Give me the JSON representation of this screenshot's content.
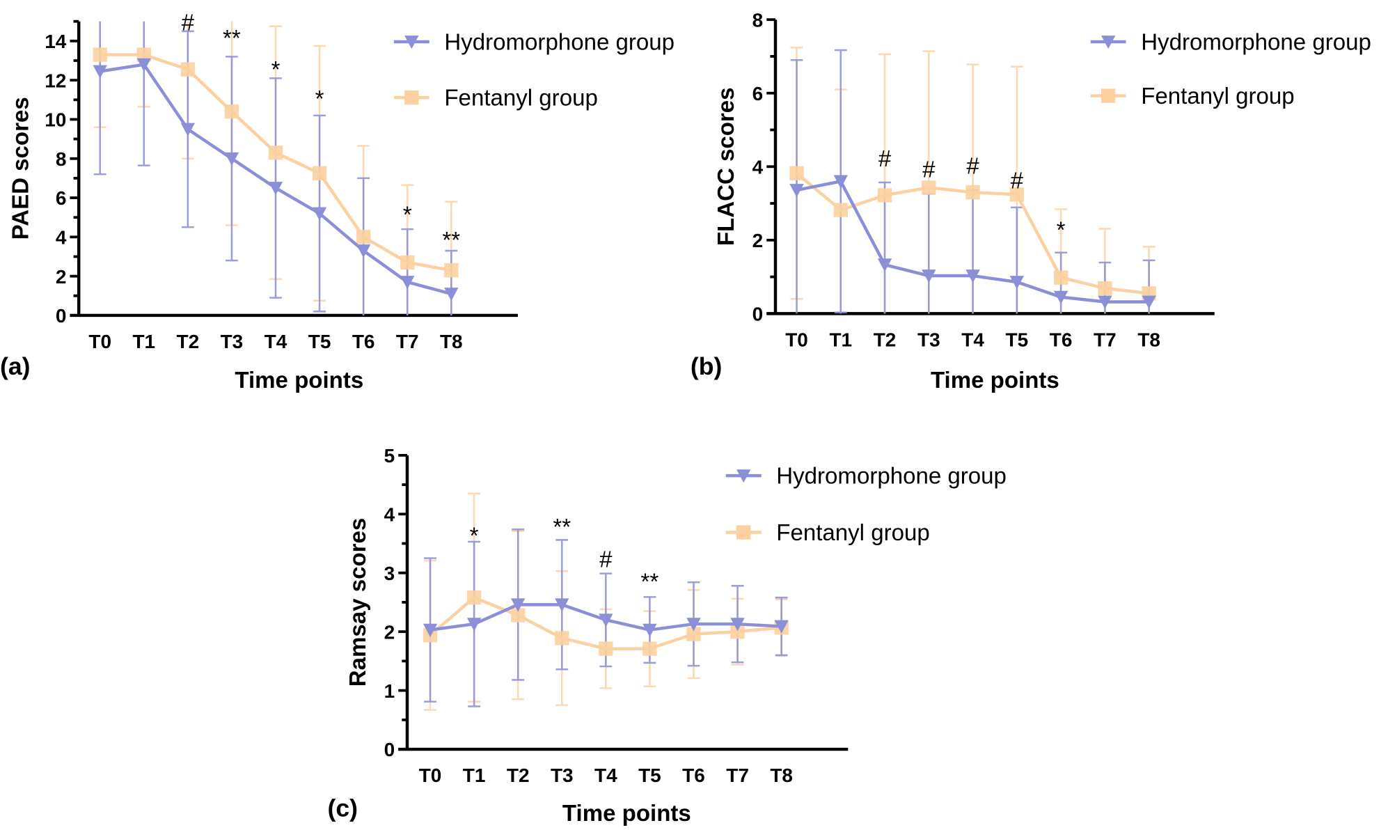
{
  "colors": {
    "hydromorphone": "#8a8fd8",
    "fentanyl": "#fcd0a0",
    "axis": "#000000"
  },
  "chart_data": [
    {
      "type": "line",
      "panel_label": "(a)",
      "xlabel": "Time points",
      "ylabel": "PAED scores",
      "categories": [
        "T0",
        "T1",
        "T2",
        "T3",
        "T4",
        "T5",
        "T6",
        "T7",
        "T8"
      ],
      "ylim": [
        0,
        15
      ],
      "yticks": [
        0,
        2,
        4,
        6,
        8,
        10,
        12,
        14
      ],
      "legend_position": "top-right",
      "series": [
        {
          "name": "Hydromorphone group",
          "key": "hydromorphone",
          "marker": "triangle-down",
          "mean": [
            12.45,
            12.8,
            9.5,
            8.0,
            6.5,
            5.2,
            3.3,
            1.7,
            1.1
          ],
          "sd": [
            5.25,
            5.15,
            5.0,
            5.2,
            5.6,
            5.0,
            3.7,
            2.7,
            2.2
          ]
        },
        {
          "name": "Fentanyl group",
          "key": "fentanyl",
          "marker": "square",
          "mean": [
            13.3,
            13.3,
            12.55,
            10.4,
            8.3,
            7.25,
            4.0,
            2.7,
            2.3
          ],
          "sd": [
            3.7,
            2.65,
            4.55,
            5.8,
            6.45,
            6.5,
            4.65,
            3.95,
            3.5
          ]
        }
      ],
      "annotations": [
        {
          "x": "T2",
          "text": "#",
          "y": 15.4
        },
        {
          "x": "T3",
          "text": "**",
          "y": 14.2
        },
        {
          "x": "T4",
          "text": "*",
          "y": 12.6
        },
        {
          "x": "T5",
          "text": "*",
          "y": 11.1
        },
        {
          "x": "T7",
          "text": "*",
          "y": 5.2
        },
        {
          "x": "T8",
          "text": "**",
          "y": 3.9
        }
      ]
    },
    {
      "type": "line",
      "panel_label": "(b)",
      "xlabel": "Time points",
      "ylabel": "FLACC scores",
      "categories": [
        "T0",
        "T1",
        "T2",
        "T3",
        "T4",
        "T5",
        "T6",
        "T7",
        "T8"
      ],
      "ylim": [
        0,
        8
      ],
      "yticks": [
        0,
        2,
        4,
        6,
        8
      ],
      "legend_position": "top-right",
      "series": [
        {
          "name": "Hydromorphone group",
          "key": "hydromorphone",
          "marker": "triangle-down",
          "mean": [
            3.36,
            3.6,
            1.33,
            1.03,
            1.03,
            0.86,
            0.45,
            0.32,
            0.32
          ],
          "sd": [
            3.54,
            3.57,
            2.24,
            2.23,
            2.33,
            2.03,
            1.21,
            1.07,
            1.13
          ]
        },
        {
          "name": "Fentanyl group",
          "key": "fentanyl",
          "marker": "square",
          "mean": [
            3.82,
            2.82,
            3.22,
            3.43,
            3.3,
            3.24,
            0.98,
            0.69,
            0.55
          ],
          "sd": [
            3.42,
            3.28,
            3.84,
            3.71,
            3.48,
            3.48,
            1.86,
            1.62,
            1.27
          ]
        }
      ],
      "annotations": [
        {
          "x": "T2",
          "text": "#",
          "y": 4.25
        },
        {
          "x": "T3",
          "text": "#",
          "y": 3.95
        },
        {
          "x": "T4",
          "text": "#",
          "y": 4.05
        },
        {
          "x": "T5",
          "text": "#",
          "y": 3.65
        },
        {
          "x": "T6",
          "text": "*",
          "y": 2.3
        }
      ]
    },
    {
      "type": "line",
      "panel_label": "(c)",
      "xlabel": "Time points",
      "ylabel": "Ramsay scores",
      "categories": [
        "T0",
        "T1",
        "T2",
        "T3",
        "T4",
        "T5",
        "T6",
        "T7",
        "T8"
      ],
      "ylim": [
        0,
        5
      ],
      "yticks": [
        0,
        1,
        2,
        3,
        4,
        5
      ],
      "legend_position": "top-right",
      "series": [
        {
          "name": "Hydromorphone group",
          "key": "hydromorphone",
          "marker": "triangle-down",
          "mean": [
            2.03,
            2.13,
            2.46,
            2.46,
            2.2,
            2.03,
            2.13,
            2.13,
            2.09
          ],
          "sd": [
            1.22,
            1.4,
            1.28,
            1.1,
            0.79,
            0.56,
            0.71,
            0.65,
            0.49
          ]
        },
        {
          "name": "Fentanyl group",
          "key": "fentanyl",
          "marker": "square",
          "mean": [
            1.94,
            2.58,
            2.28,
            1.89,
            1.71,
            1.71,
            1.96,
            2.0,
            2.07
          ],
          "sd": [
            1.27,
            1.77,
            1.43,
            1.14,
            0.67,
            0.64,
            0.75,
            0.56,
            0.48
          ]
        }
      ],
      "annotations": [
        {
          "x": "T1",
          "text": "*",
          "y": 3.65
        },
        {
          "x": "T3",
          "text": "**",
          "y": 3.8
        },
        {
          "x": "T4",
          "text": "#",
          "y": 3.25
        },
        {
          "x": "T5",
          "text": "**",
          "y": 2.87
        }
      ]
    }
  ]
}
